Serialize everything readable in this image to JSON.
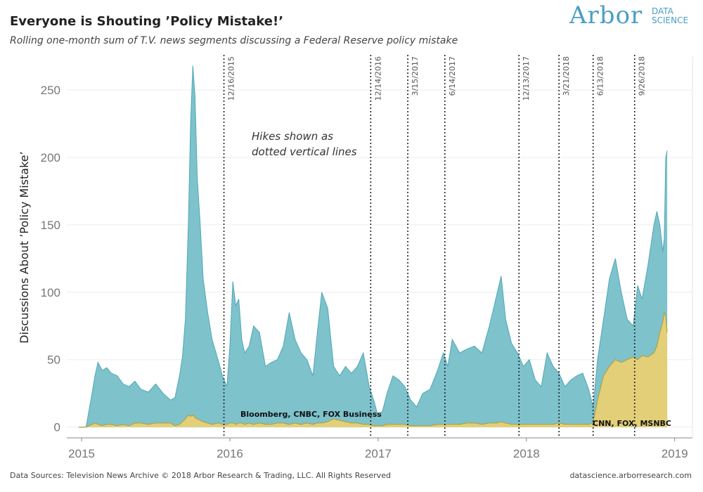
{
  "header": {
    "title": "Everyone is Shouting ’Policy Mistake!’",
    "subtitle": "Rolling one-month sum of T.V. news segments discussing a Federal Reserve policy mistake"
  },
  "logo": {
    "main": "Arbor",
    "sub_line1": "DATA",
    "sub_line2": "SCIENCE"
  },
  "footer": {
    "left": "Data Sources: Television News Archive © 2018 Arbor Research & Trading, LLC. All Rights Reserved",
    "right": "datascience.arborresearch.com"
  },
  "colors": {
    "total_fill": "#7ec2cc",
    "total_line": "#4ea9b6",
    "sub_fill": "#e2cf78",
    "sub_line": "#b79b2d"
  },
  "chart_data": {
    "type": "area",
    "ylabel": "Discussions About ’Policy Mistake’",
    "ylim": [
      -8,
      275
    ],
    "xlim": [
      2014.9,
      2019.12
    ],
    "x_ticks": [
      2015,
      2016,
      2017,
      2018,
      2019
    ],
    "y_ticks": [
      0,
      50,
      100,
      150,
      200,
      250
    ],
    "grid": "horizontal",
    "annotation": "Hikes shown as dotted vertical lines",
    "hikes": [
      {
        "label": "12/16/2015",
        "x": 2015.96
      },
      {
        "label": "12/14/2016",
        "x": 2016.95
      },
      {
        "label": "3/15/2017",
        "x": 2017.2
      },
      {
        "label": "6/14/2017",
        "x": 2017.45
      },
      {
        "label": "12/13/2017",
        "x": 2017.95
      },
      {
        "label": "3/21/2018",
        "x": 2018.22
      },
      {
        "label": "6/13/2018",
        "x": 2018.45
      },
      {
        "label": "9/26/2018",
        "x": 2018.73
      }
    ],
    "series": [
      {
        "label": "Bloomberg, CNBC, FOX Business",
        "x": [
          2014.98,
          2015.03,
          2015.07,
          2015.09,
          2015.11,
          2015.14,
          2015.17,
          2015.2,
          2015.24,
          2015.28,
          2015.32,
          2015.36,
          2015.4,
          2015.45,
          2015.5,
          2015.55,
          2015.6,
          2015.63,
          2015.66,
          2015.68,
          2015.7,
          2015.72,
          2015.735,
          2015.75,
          2015.765,
          2015.78,
          2015.8,
          2015.82,
          2015.85,
          2015.88,
          2015.92,
          2015.95,
          2015.98,
          2016.0,
          2016.02,
          2016.04,
          2016.06,
          2016.08,
          2016.1,
          2016.13,
          2016.16,
          2016.2,
          2016.24,
          2016.28,
          2016.32,
          2016.36,
          2016.4,
          2016.44,
          2016.48,
          2016.52,
          2016.56,
          2016.59,
          2016.62,
          2016.66,
          2016.7,
          2016.74,
          2016.78,
          2016.82,
          2016.86,
          2016.9,
          2016.94,
          2016.97,
          2017.0,
          2017.03,
          2017.06,
          2017.1,
          2017.14,
          2017.18,
          2017.22,
          2017.26,
          2017.3,
          2017.35,
          2017.4,
          2017.44,
          2017.47,
          2017.5,
          2017.55,
          2017.6,
          2017.65,
          2017.7,
          2017.75,
          2017.8,
          2017.83,
          2017.86,
          2017.9,
          2017.94,
          2017.98,
          2018.02,
          2018.06,
          2018.1,
          2018.14,
          2018.18,
          2018.22,
          2018.26,
          2018.3,
          2018.34,
          2018.38,
          2018.42,
          2018.45,
          2018.48,
          2018.52,
          2018.56,
          2018.6,
          2018.64,
          2018.68,
          2018.72,
          2018.75,
          2018.78,
          2018.82,
          2018.86,
          2018.88,
          2018.9,
          2018.92,
          2018.93,
          2018.94,
          2018.95
        ],
        "total": [
          0,
          0,
          25,
          38,
          48,
          42,
          44,
          40,
          38,
          32,
          30,
          34,
          28,
          26,
          32,
          25,
          20,
          22,
          38,
          52,
          80,
          150,
          225,
          268,
          245,
          185,
          150,
          110,
          85,
          65,
          50,
          38,
          30,
          60,
          108,
          90,
          95,
          65,
          55,
          60,
          75,
          70,
          45,
          48,
          50,
          60,
          85,
          65,
          55,
          50,
          38,
          70,
          100,
          88,
          45,
          38,
          45,
          40,
          45,
          55,
          30,
          20,
          8,
          12,
          25,
          38,
          35,
          30,
          20,
          15,
          25,
          28,
          42,
          55,
          45,
          65,
          55,
          58,
          60,
          55,
          75,
          98,
          112,
          80,
          62,
          55,
          45,
          50,
          35,
          30,
          55,
          45,
          40,
          30,
          35,
          38,
          40,
          28,
          15,
          50,
          80,
          110,
          125,
          100,
          80,
          75,
          105,
          95,
          120,
          150,
          160,
          150,
          130,
          140,
          200,
          205
        ],
        "sub": [
          0,
          0,
          2,
          3,
          2,
          1,
          2,
          2,
          1,
          2,
          1,
          3,
          3,
          2,
          3,
          3,
          3,
          1,
          2,
          4,
          6,
          9,
          8,
          9,
          7,
          6,
          5,
          4,
          3,
          2,
          3,
          2,
          2,
          3,
          3,
          2,
          3,
          3,
          2,
          3,
          2,
          3,
          2,
          2,
          3,
          3,
          2,
          3,
          2,
          3,
          2,
          3,
          3,
          4,
          6,
          5,
          4,
          3,
          3,
          2,
          2,
          1,
          1,
          1,
          2,
          2,
          2,
          2,
          1,
          1,
          1,
          1,
          2,
          2,
          2,
          2,
          2,
          3,
          3,
          2,
          3,
          3,
          4,
          3,
          2,
          2,
          2,
          2,
          2,
          2,
          2,
          2,
          3,
          2,
          2,
          2,
          2,
          2,
          3,
          20,
          38,
          45,
          50,
          48,
          50,
          52,
          50,
          53,
          52,
          55,
          60,
          70,
          78,
          85,
          82,
          70
        ]
      },
      {
        "label": "CNN, FOX, MSNBC"
      }
    ]
  }
}
